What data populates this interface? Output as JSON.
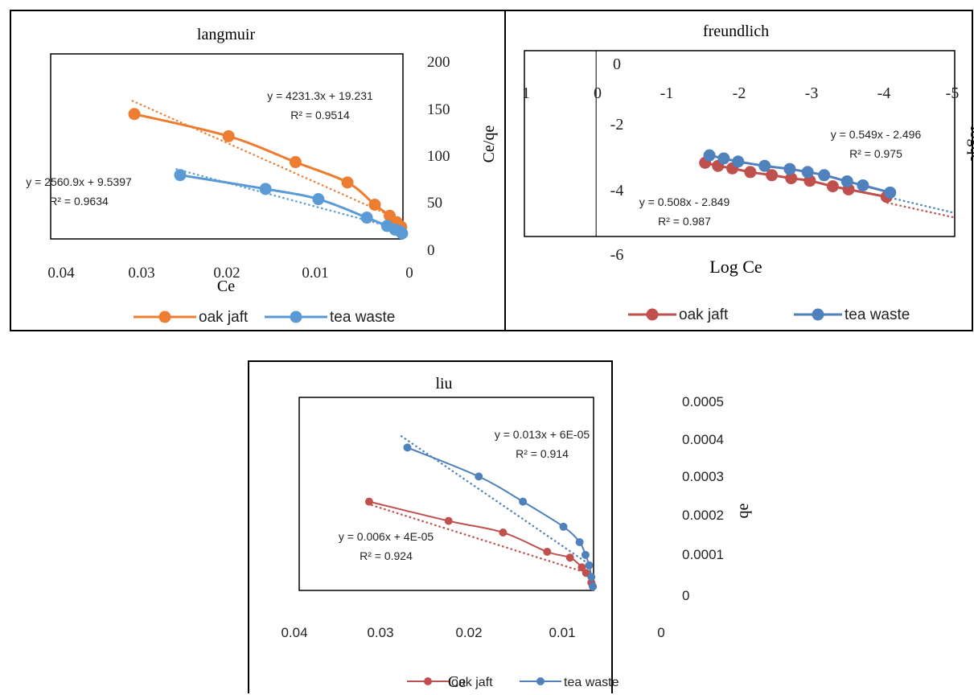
{
  "colors": {
    "orange": "#ED7D31",
    "blue": "#5B9BD5",
    "red": "#C0504D",
    "darkblue": "#4F81BD"
  },
  "chart_data": [
    {
      "type": "line",
      "title": "langmuir",
      "xlabel": "Ce",
      "ylabel": "Ce/qe",
      "x_reversed": true,
      "xlim": [
        0.04,
        0
      ],
      "ylim": [
        0,
        200
      ],
      "x_ticks": [
        "0.04",
        "0.03",
        "0.02",
        "0.01",
        "0"
      ],
      "y_ticks": [
        "200",
        "150",
        "100",
        "50",
        "0"
      ],
      "legend_position": "bottom",
      "grid": false,
      "series": [
        {
          "name": "oak jaft",
          "color": "#ED7D31",
          "x": [
            0.0305,
            0.0198,
            0.0122,
            0.0063,
            0.0032,
            0.0015,
            0.0007,
            0.0002
          ],
          "y": [
            135,
            111,
            83,
            61,
            37,
            25,
            18,
            13
          ],
          "trendline": {
            "equation": "y = 4231.3x  + 19.231",
            "r2": "R² = 0.9514",
            "slope": 4231.3,
            "intercept": 19.231
          }
        },
        {
          "name": "tea waste",
          "color": "#5B9BD5",
          "x": [
            0.0253,
            0.0156,
            0.0096,
            0.0041,
            0.0018,
            0.0009,
            0.0003,
            0.0001
          ],
          "y": [
            69,
            54,
            43,
            23,
            14,
            10,
            8,
            6
          ],
          "trendline": {
            "equation": "y = 2560.9x  + 9.5397",
            "r2": "R² = 0.9634",
            "slope": 2560.9,
            "intercept": 9.5397
          }
        }
      ]
    },
    {
      "type": "line",
      "title": "freundlich",
      "xlabel": "Log Ce",
      "ylabel": "logqe",
      "x_reversed": true,
      "xlim": [
        1,
        -5
      ],
      "ylim": [
        -6,
        0
      ],
      "x_ticks": [
        "1",
        "0",
        "-1",
        "-2",
        "-3",
        "-4",
        "-5"
      ],
      "y_ticks": [
        "0",
        "-2",
        "-4",
        "-6"
      ],
      "legend_position": "bottom",
      "grid": false,
      "series": [
        {
          "name": "oak jaft",
          "color": "#C0504D",
          "x": [
            -1.52,
            -1.7,
            -1.9,
            -2.15,
            -2.45,
            -2.72,
            -2.98,
            -3.3,
            -3.52,
            -4.05
          ],
          "y": [
            -3.62,
            -3.72,
            -3.8,
            -3.92,
            -4.02,
            -4.12,
            -4.2,
            -4.38,
            -4.48,
            -4.72
          ],
          "trendline": {
            "equation": "y = 0.508x  - 2.849",
            "r2": "R² = 0.987",
            "slope": 0.508,
            "intercept": -2.849
          }
        },
        {
          "name": "tea waste",
          "color": "#4F81BD",
          "x": [
            -1.58,
            -1.78,
            -1.98,
            -2.35,
            -2.7,
            -2.95,
            -3.18,
            -3.5,
            -3.72,
            -4.1
          ],
          "y": [
            -3.38,
            -3.48,
            -3.58,
            -3.72,
            -3.82,
            -3.92,
            -4.02,
            -4.22,
            -4.35,
            -4.58
          ],
          "trendline": {
            "equation": "y = 0.549x  - 2.496",
            "r2": "R² = 0.975",
            "slope": 0.549,
            "intercept": -2.496
          }
        }
      ]
    },
    {
      "type": "line",
      "title": "liu",
      "xlabel": "Ce",
      "ylabel": "qe",
      "x_reversed": true,
      "xlim": [
        0.04,
        0
      ],
      "ylim": [
        0,
        0.0005
      ],
      "x_ticks": [
        "0.04",
        "0.03",
        "0.02",
        "0.01",
        "0"
      ],
      "y_ticks": [
        "0.0005",
        "0.0004",
        "0.0003",
        "0.0002",
        "0.0001",
        "0"
      ],
      "legend_position": "bottom",
      "grid": false,
      "series": [
        {
          "name": "oak jaft",
          "color": "#C0504D",
          "x": [
            0.0305,
            0.0197,
            0.0123,
            0.0063,
            0.0032,
            0.0016,
            0.001,
            0.0003,
            0.0001
          ],
          "y": [
            0.00023,
            0.00018,
            0.00015,
            0.0001,
            8.5e-05,
            6e-05,
            4.5e-05,
            2e-05,
            1e-05
          ],
          "trendline": {
            "equation": "y = 0.006x + 4E-05",
            "r2": "R² = 0.924",
            "slope": 0.006,
            "intercept": 4e-05
          }
        },
        {
          "name": "tea waste",
          "color": "#4F81BD",
          "x": [
            0.0253,
            0.0156,
            0.0096,
            0.0041,
            0.0019,
            0.0011,
            0.0006,
            0.0003,
            0.0001
          ],
          "y": [
            0.00037,
            0.000295,
            0.00023,
            0.000165,
            0.000125,
            9.2e-05,
            6.5e-05,
            3.5e-05,
            1e-05
          ],
          "trendline": {
            "equation": "y = 0.013x + 6E-05",
            "r2": "R² = 0.914",
            "slope": 0.013,
            "intercept": 6e-05
          }
        }
      ]
    }
  ]
}
